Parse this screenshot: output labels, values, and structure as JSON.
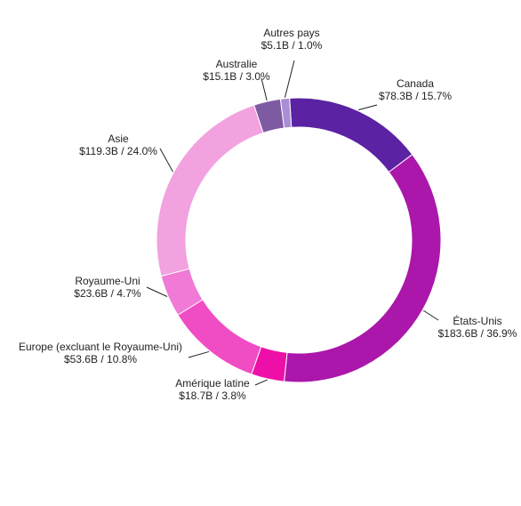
{
  "chart_data": {
    "type": "pie",
    "variant": "donut",
    "title": "",
    "slices": [
      {
        "name": "Canada",
        "value": 78.3,
        "value_label": "$78.3B",
        "percent": 15.7,
        "percent_label": "15.7%",
        "color": "#5b23a3"
      },
      {
        "name": "États-Unis",
        "value": 183.6,
        "value_label": "$183.6B",
        "percent": 36.9,
        "percent_label": "36.9%",
        "color": "#aa17aa"
      },
      {
        "name": "Amérique latine",
        "value": 18.7,
        "value_label": "$18.7B",
        "percent": 3.8,
        "percent_label": "3.8%",
        "color": "#ee0fa8"
      },
      {
        "name": "Europe (excluant le Royaume-Uni)",
        "value": 53.6,
        "value_label": "$53.6B",
        "percent": 10.8,
        "percent_label": "10.8%",
        "color": "#f04cc4"
      },
      {
        "name": "Royaume-Uni",
        "value": 23.6,
        "value_label": "$23.6B",
        "percent": 4.7,
        "percent_label": "4.7%",
        "color": "#f07ad6"
      },
      {
        "name": "Asie",
        "value": 119.3,
        "value_label": "$119.3B",
        "percent": 24.0,
        "percent_label": "24.0%",
        "color": "#f2a2df"
      },
      {
        "name": "Australie",
        "value": 15.1,
        "value_label": "$15.1B",
        "percent": 3.0,
        "percent_label": "3.0%",
        "color": "#7e5aa3"
      },
      {
        "name": "Autres pays",
        "value": 5.1,
        "value_label": "$5.1B",
        "percent": 1.0,
        "percent_label": "1.0%",
        "color": "#a98ed6",
        "highlighted": true
      }
    ]
  }
}
